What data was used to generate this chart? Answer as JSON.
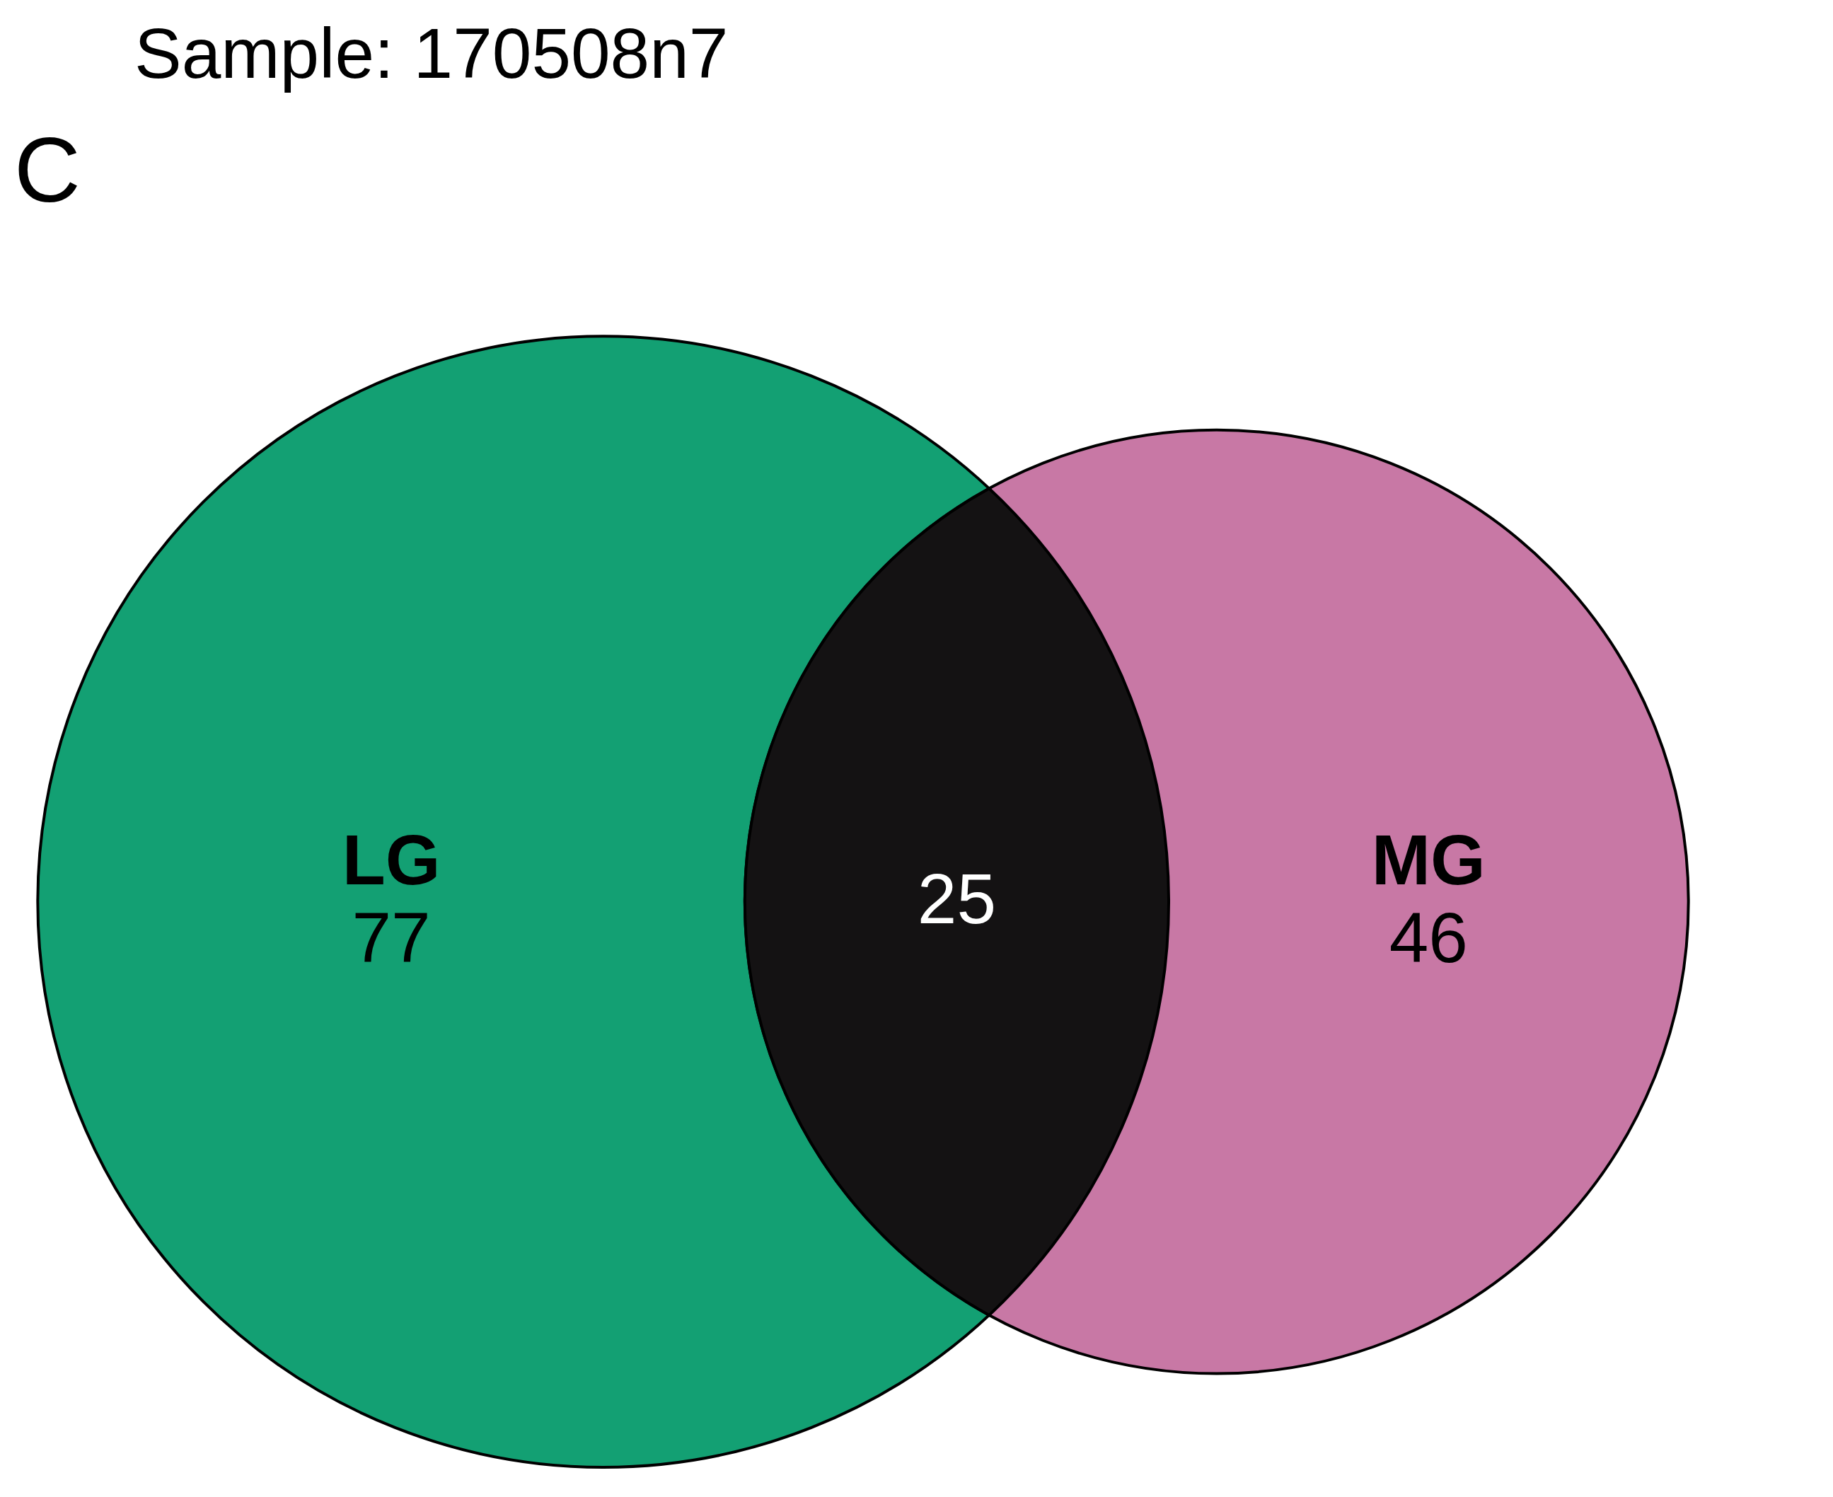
{
  "chart_data": {
    "type": "other",
    "title": "Sample: 170508n7",
    "annotations": [
      "C"
    ],
    "categories": [
      "LG",
      null,
      "MG"
    ],
    "values": [
      77,
      25,
      46
    ],
    "colors": [
      "#13a073",
      "#141213",
      "#c878a5"
    ],
    "data_labels": true
  }
}
